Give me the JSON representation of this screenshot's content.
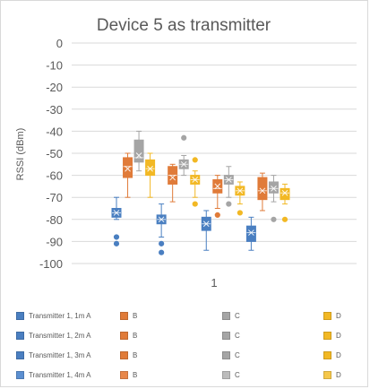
{
  "chart_data": {
    "type": "box",
    "title": "Device 5 as transmitter",
    "ylabel": "RSSI (dBm)",
    "xlabel": "",
    "categories": [
      "1"
    ],
    "ylim": [
      -100,
      0
    ],
    "yticks": [
      0,
      -10,
      -20,
      -30,
      -40,
      -50,
      -60,
      -70,
      -80,
      -90,
      -100
    ],
    "ytick_labels": [
      "0",
      "-10",
      "-20",
      "-30",
      "-40",
      "-50",
      "-60",
      "-70",
      "-80",
      "-90",
      "-100"
    ],
    "grid": true,
    "legend_position": "bottom",
    "series": [
      {
        "label": "Transmitter 1, 1m A",
        "color": "#4a7fc1",
        "min": -80,
        "q1": -79,
        "median": -77,
        "mean": -77,
        "q3": -75,
        "max": -70,
        "outliers": [
          -88,
          -91
        ]
      },
      {
        "label": "B",
        "color": "#e07b39",
        "min": -70,
        "q1": -61,
        "median": -56,
        "mean": -57,
        "q3": -52,
        "max": -50,
        "outliers": []
      },
      {
        "label": "C",
        "color": "#a5a5a5",
        "min": -58,
        "q1": -54,
        "median": -52,
        "mean": -51,
        "q3": -44,
        "max": -40,
        "outliers": []
      },
      {
        "label": "D",
        "color": "#f2b824",
        "min": -70,
        "q1": -60,
        "median": -57,
        "mean": -57,
        "q3": -53,
        "max": -50,
        "outliers": []
      },
      {
        "label": "Transmitter 1, 2m A",
        "color": "#4a7fc1",
        "min": -88,
        "q1": -82,
        "median": -80,
        "mean": -80,
        "q3": -78,
        "max": -73,
        "outliers": [
          -91,
          -95
        ]
      },
      {
        "label": "B",
        "color": "#e07b39",
        "min": -72,
        "q1": -64,
        "median": -60,
        "mean": -61,
        "q3": -56,
        "max": -55,
        "outliers": []
      },
      {
        "label": "C",
        "color": "#a5a5a5",
        "min": -60,
        "q1": -57,
        "median": -55,
        "mean": -55,
        "q3": -53,
        "max": -51,
        "outliers": [
          -43
        ]
      },
      {
        "label": "D",
        "color": "#f2b824",
        "min": -70,
        "q1": -64,
        "median": -62,
        "mean": -62,
        "q3": -60,
        "max": -58,
        "outliers": [
          -53,
          -73
        ]
      },
      {
        "label": "Transmitter 1, 3m A",
        "color": "#4a7fc1",
        "min": -94,
        "q1": -85,
        "median": -82,
        "mean": -82,
        "q3": -79,
        "max": -76,
        "outliers": []
      },
      {
        "label": "B",
        "color": "#e07b39",
        "min": -75,
        "q1": -68,
        "median": -66,
        "mean": -65,
        "q3": -62,
        "max": -60,
        "outliers": [
          -78
        ]
      },
      {
        "label": "C",
        "color": "#a5a5a5",
        "min": -70,
        "q1": -64,
        "median": -62,
        "mean": -62,
        "q3": -60,
        "max": -56,
        "outliers": [
          -73
        ]
      },
      {
        "label": "D",
        "color": "#f2b824",
        "min": -73,
        "q1": -69,
        "median": -67,
        "mean": -67,
        "q3": -65,
        "max": -63,
        "outliers": [
          -77
        ]
      },
      {
        "label": "Transmitter 1, 4m A",
        "color": "#4a7fc1",
        "min": -94,
        "q1": -90,
        "median": -86,
        "mean": -86,
        "q3": -83,
        "max": -79,
        "outliers": []
      },
      {
        "label": "B",
        "color": "#e07b39",
        "min": -76,
        "q1": -71,
        "median": -67,
        "mean": -67,
        "q3": -61,
        "max": -59,
        "outliers": []
      },
      {
        "label": "C",
        "color": "#a5a5a5",
        "min": -72,
        "q1": -68,
        "median": -66,
        "mean": -66,
        "q3": -63,
        "max": -60,
        "outliers": [
          -80
        ]
      },
      {
        "label": "D",
        "color": "#f2b824",
        "min": -73,
        "q1": -71,
        "median": -68,
        "mean": -68,
        "q3": -66,
        "max": -64,
        "outliers": [
          -80
        ]
      }
    ]
  },
  "legend": {
    "rows": [
      [
        {
          "label": "Transmitter 1, 1m A",
          "color": "#4a7fc1"
        },
        {
          "label": "B",
          "color": "#e07b39"
        },
        {
          "label": "C",
          "color": "#a5a5a5"
        },
        {
          "label": "D",
          "color": "#f2b824"
        }
      ],
      [
        {
          "label": "Transmitter 1, 2m A",
          "color": "#4a7fc1"
        },
        {
          "label": "B",
          "color": "#e07b39"
        },
        {
          "label": "C",
          "color": "#a5a5a5"
        },
        {
          "label": "D",
          "color": "#f2b824"
        }
      ],
      [
        {
          "label": "Transmitter 1, 3m A",
          "color": "#4a7fc1"
        },
        {
          "label": "B",
          "color": "#e07b39"
        },
        {
          "label": "C",
          "color": "#a5a5a5"
        },
        {
          "label": "D",
          "color": "#f2b824"
        }
      ],
      [
        {
          "label": "Transmitter 1, 4m A",
          "color": "#5b8fd1"
        },
        {
          "label": "B",
          "color": "#e8874a"
        },
        {
          "label": "C",
          "color": "#bcbcbc"
        },
        {
          "label": "D",
          "color": "#f5c74a"
        }
      ]
    ]
  }
}
